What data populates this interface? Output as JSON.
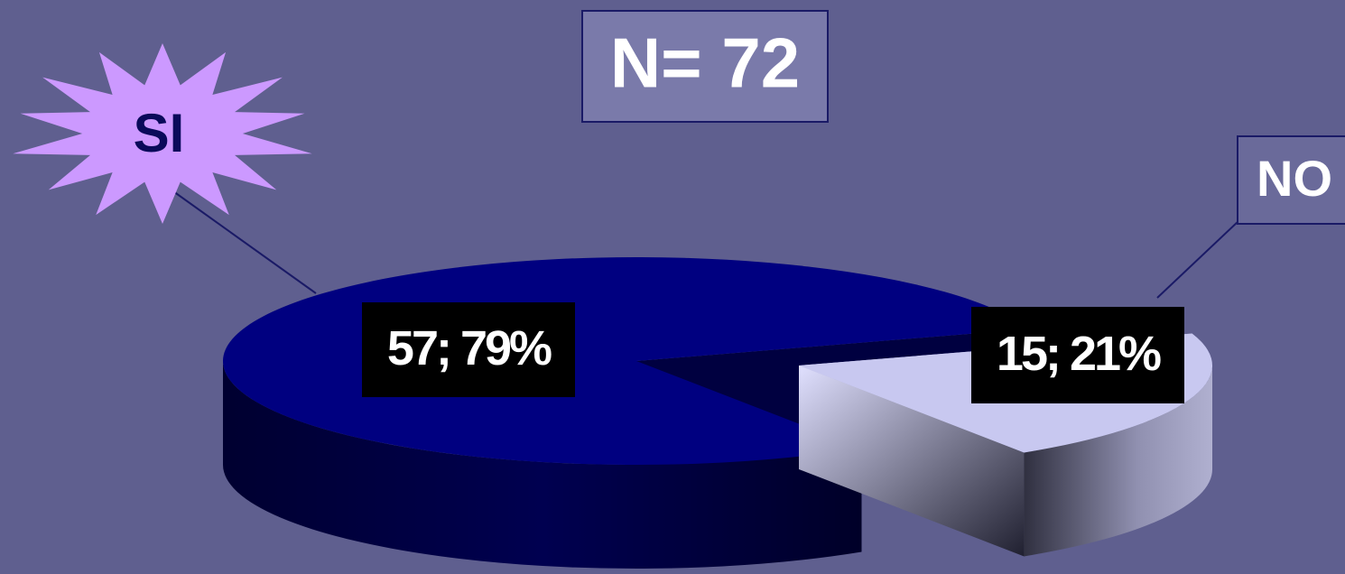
{
  "chart_data": {
    "type": "pie",
    "title": "N= 72",
    "categories": [
      "SI",
      "NO"
    ],
    "values": [
      57,
      15
    ],
    "value_labels": [
      "57; 79%",
      "15; 21%"
    ],
    "colors": [
      "#000080",
      "#c8c8f0"
    ]
  }
}
